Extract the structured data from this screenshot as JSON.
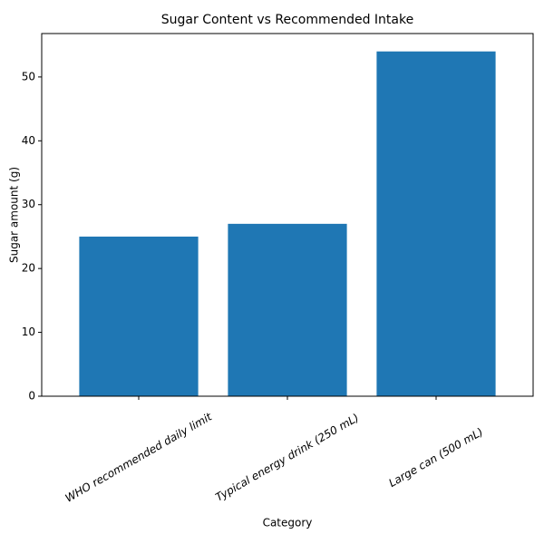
{
  "chart_data": {
    "type": "bar",
    "title": "Sugar Content vs Recommended Intake",
    "x_label": "Category",
    "y_label": "Sugar amount (g)",
    "categories": [
      "WHO recommended daily limit",
      "Typical energy drink (250 mL)",
      "Large can (500 mL)"
    ],
    "values": [
      25,
      27,
      54
    ],
    "color": "#1f77b4",
    "ylim": [
      0,
      56.8
    ],
    "yticks": [
      0,
      10,
      20,
      30,
      40,
      50
    ],
    "grid": false
  }
}
